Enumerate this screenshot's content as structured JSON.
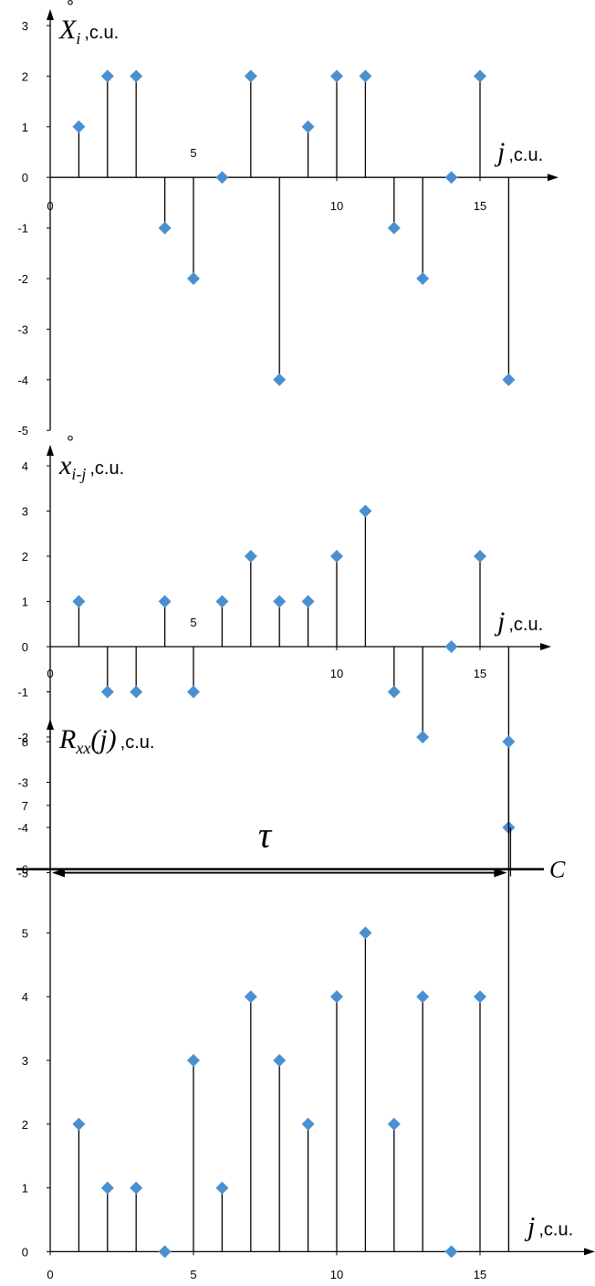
{
  "chart_data": [
    {
      "type": "stem",
      "x": [
        1,
        2,
        3,
        4,
        5,
        6,
        7,
        8,
        9,
        10,
        11,
        12,
        13,
        14,
        15,
        16
      ],
      "values": [
        1,
        2,
        2,
        -1,
        -2,
        0,
        2,
        -4,
        1,
        2,
        2,
        -1,
        -2,
        0,
        2,
        -4
      ],
      "xticks": [
        "0",
        "5",
        "10",
        "15"
      ],
      "yticks": [
        "3",
        "2",
        "1",
        "0",
        "-1",
        "-2",
        "-3",
        "-4",
        "-5"
      ],
      "ylabel_main": "X",
      "ylabel_ring": "°",
      "ylabel_sub": "i",
      "ylabel_unit": ",c.u.",
      "xlabel_main": "j",
      "xlabel_unit": ",c.u.",
      "ylim": [
        -5,
        3
      ],
      "xlim": [
        0,
        17
      ]
    },
    {
      "type": "stem",
      "x": [
        1,
        2,
        3,
        4,
        5,
        6,
        7,
        8,
        9,
        10,
        11,
        12,
        13,
        14,
        15,
        16
      ],
      "values": [
        1,
        -1,
        -1,
        1,
        -1,
        1,
        2,
        1,
        1,
        2,
        3,
        -1,
        -2,
        0,
        2,
        -4
      ],
      "xticks": [
        "0",
        "5",
        "10",
        "15"
      ],
      "yticks": [
        "4",
        "3",
        "2",
        "1",
        "0",
        "-1",
        "-2",
        "-3",
        "-4",
        "-5"
      ],
      "ylabel_main": "x",
      "ylabel_ring": "°",
      "ylabel_sub": "i-j",
      "ylabel_unit": ",c.u.",
      "xlabel_main": "j",
      "xlabel_unit": ",c.u.",
      "annotation": "τ",
      "ylim": [
        -5,
        4
      ],
      "xlim": [
        0,
        17
      ]
    },
    {
      "type": "stem",
      "x": [
        1,
        2,
        3,
        4,
        5,
        6,
        7,
        8,
        9,
        10,
        11,
        12,
        13,
        14,
        15,
        16
      ],
      "values": [
        2,
        1,
        1,
        0,
        3,
        1,
        4,
        3,
        2,
        4,
        5,
        2,
        4,
        0,
        4,
        8
      ],
      "xticks": [
        "0",
        "5",
        "10",
        "15"
      ],
      "yticks": [
        "8",
        "7",
        "6",
        "5",
        "4",
        "3",
        "2",
        "1",
        "0"
      ],
      "ylabel_main": "R",
      "ylabel_sub": "xx",
      "ylabel_arg": "(j)",
      "ylabel_unit": ",c.u.",
      "xlabel_main": "j",
      "xlabel_unit": ",c.u.",
      "threshold_value": 6,
      "threshold_label": "C",
      "ylim": [
        0,
        8
      ],
      "xlim": [
        0,
        17
      ]
    }
  ],
  "colors": {
    "marker": "#4a90d0",
    "axis": "#000000"
  }
}
